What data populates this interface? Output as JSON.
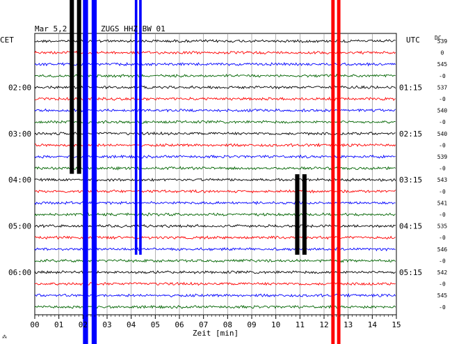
{
  "header": {
    "date": "Mar 5,2",
    "station": "ZUGS HHZ BW 01"
  },
  "left_tz": "CET",
  "right_tz": "UTC",
  "dc_label": "DC",
  "left_time_labels": [
    "02:00",
    "03:00",
    "04:00",
    "05:00",
    "06:00"
  ],
  "right_time_labels": [
    "01:15",
    "02:15",
    "03:15",
    "04:15",
    "05:15"
  ],
  "dc_values": [
    "539",
    "0",
    "545",
    "-0",
    "537",
    "-0",
    "540",
    "-0",
    "540",
    "-0",
    "539",
    "-0",
    "543",
    "-0",
    "541",
    "-0",
    "535",
    "-0",
    "546",
    "-0",
    "542",
    "-0",
    "545",
    "-0"
  ],
  "x_ticks": [
    "00",
    "01",
    "02",
    "03",
    "04",
    "05",
    "06",
    "07",
    "08",
    "09",
    "10",
    "11",
    "12",
    "13",
    "14",
    "15"
  ],
  "xlabel": "Zeit [min]",
  "corner_mark": "⁂",
  "colors": {
    "black": "#000000",
    "red": "#ff0000",
    "blue": "#0000ff",
    "green": "#006400",
    "grid": "#808080"
  },
  "chart_data": {
    "type": "line",
    "title": "ZUGS HHZ BW 01",
    "xlabel": "Zeit [min]",
    "xlim": [
      0,
      15
    ],
    "trace_count": 24,
    "trace_minutes": 15,
    "color_cycle": [
      "black",
      "red",
      "blue",
      "green"
    ],
    "events": [
      {
        "start": 1.45,
        "end": 1.95,
        "traces": [
          0,
          11
        ],
        "color": "black"
      },
      {
        "start": 2.0,
        "end": 2.6,
        "traces": [
          0,
          23
        ],
        "color": "blue"
      },
      {
        "start": 4.15,
        "end": 4.45,
        "traces": [
          0,
          18
        ],
        "color": "blue"
      },
      {
        "start": 10.8,
        "end": 11.3,
        "traces": [
          12,
          18
        ],
        "color": "black"
      },
      {
        "start": 12.3,
        "end": 12.7,
        "traces": [
          0,
          23
        ],
        "color": "red"
      }
    ]
  }
}
